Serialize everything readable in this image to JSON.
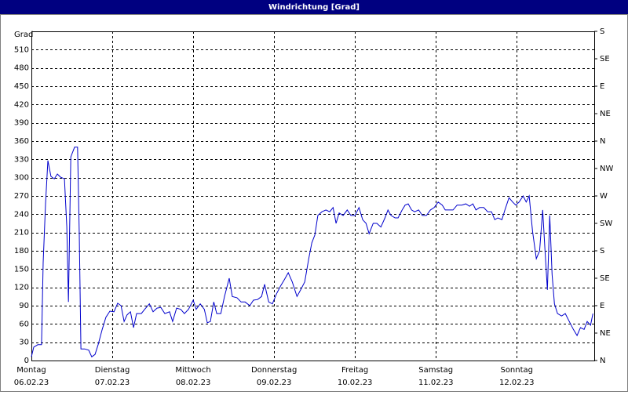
{
  "chart_data": {
    "type": "line",
    "title": "Windrichtung [Grad]",
    "y_label": "Grad",
    "color": "#0000cc",
    "grid": true,
    "xlim": [
      0,
      167
    ],
    "xticks": [
      {
        "value": 0,
        "label": "Montag"
      },
      {
        "value": 24,
        "label": "Dienstag"
      },
      {
        "value": 48,
        "label": "Mittwoch"
      },
      {
        "value": 72,
        "label": "Donnerstag"
      },
      {
        "value": 96,
        "label": "Freitag"
      },
      {
        "value": 120,
        "label": "Samstag"
      },
      {
        "value": 144,
        "label": "Sonntag"
      }
    ],
    "xtick_dates": [
      "06.02.23",
      "07.02.23",
      "08.02.23",
      "09.02.23",
      "10.02.23",
      "11.02.23",
      "12.02.23"
    ],
    "ylim": [
      0,
      540
    ],
    "yticks": [
      0,
      30,
      60,
      90,
      120,
      150,
      180,
      210,
      240,
      270,
      300,
      330,
      360,
      390,
      420,
      450,
      480,
      510
    ],
    "y2lim": [
      0,
      540
    ],
    "y2ticks": [
      {
        "value": 0,
        "label": "N"
      },
      {
        "value": 45,
        "label": "NE"
      },
      {
        "value": 90,
        "label": "E"
      },
      {
        "value": 135,
        "label": "SE"
      },
      {
        "value": 180,
        "label": "S"
      },
      {
        "value": 225,
        "label": "SW"
      },
      {
        "value": 270,
        "label": "W"
      },
      {
        "value": 315,
        "label": "NW"
      },
      {
        "value": 360,
        "label": "N"
      },
      {
        "value": 405,
        "label": "NE"
      },
      {
        "value": 450,
        "label": "E"
      },
      {
        "value": 495,
        "label": "SE"
      },
      {
        "value": 540,
        "label": "S"
      }
    ],
    "x": [
      0,
      0.7,
      1.9,
      3.0,
      3.5,
      4.2,
      4.9,
      5.8,
      6.8,
      7.7,
      8.6,
      9.8,
      10.5,
      11,
      11.7,
      12.8,
      13.7,
      14.2,
      14.7,
      15.8,
      17,
      17.9,
      18.9,
      19.8,
      21,
      22.1,
      23.3,
      24.5,
      25.6,
      26.6,
      27.5,
      28.4,
      29.4,
      30.3,
      31.2,
      32.6,
      33.6,
      35,
      36.1,
      37.3,
      38.4,
      39.6,
      41,
      41.9,
      43.1,
      44.3,
      45.4,
      46.6,
      48,
      48.9,
      50.1,
      51.3,
      52.2,
      53.1,
      54.1,
      55,
      56.2,
      57.3,
      58.7,
      59.6,
      61,
      62.2,
      63.4,
      64.8,
      65.9,
      67.1,
      68.3,
      69.2,
      70.4,
      71.5,
      72.7,
      73.9,
      75,
      76.2,
      77.4,
      78.8,
      79.9,
      81.1,
      82.3,
      83.2,
      84.1,
      85,
      86.2,
      87.4,
      88.5,
      89.5,
      90.4,
      91.3,
      92.5,
      93.7,
      94.8,
      96,
      97.2,
      98.3,
      99.3,
      100.2,
      101.4,
      102.5,
      103.7,
      104.9,
      105.8,
      106.7,
      107.9,
      108.8,
      110,
      110.9,
      111.8,
      112.8,
      113.7,
      114.9,
      116,
      117.2,
      118.4,
      119.5,
      120.7,
      121.9,
      122.8,
      124,
      125.1,
      126.3,
      127.7,
      128.9,
      130,
      131,
      131.9,
      133,
      134.2,
      135.4,
      136.5,
      137.5,
      138.4,
      139.6,
      140.5,
      141.7,
      142.8,
      143.7,
      144.7,
      145.9,
      146.8,
      147.7,
      148.7,
      149.8,
      150.8,
      151.7,
      152.4,
      153.1,
      153.8,
      154.5,
      155.2,
      156.1,
      157.3,
      158.4,
      159.6,
      160.8,
      161.9,
      162.9,
      164,
      164.9,
      165.9,
      166.6
    ],
    "values": [
      6,
      22,
      26,
      26,
      161,
      257,
      328,
      302,
      298,
      306,
      301,
      298,
      219,
      96,
      334,
      350,
      350,
      206,
      19,
      19,
      17,
      6,
      10,
      26,
      51,
      71,
      81,
      80,
      94,
      90,
      64,
      75,
      80,
      54,
      77,
      77,
      84,
      93,
      80,
      86,
      87,
      77,
      80,
      64,
      86,
      84,
      77,
      84,
      99,
      84,
      93,
      84,
      62,
      64,
      96,
      77,
      77,
      105,
      135,
      105,
      103,
      96,
      96,
      90,
      99,
      100,
      105,
      125,
      96,
      93,
      109,
      122,
      132,
      144,
      129,
      105,
      116,
      129,
      167,
      193,
      206,
      238,
      244,
      247,
      244,
      251,
      225,
      242,
      238,
      247,
      238,
      238,
      251,
      231,
      225,
      208,
      225,
      225,
      219,
      234,
      247,
      238,
      234,
      234,
      247,
      255,
      257,
      247,
      244,
      247,
      238,
      238,
      247,
      251,
      260,
      255,
      247,
      247,
      247,
      255,
      255,
      257,
      253,
      257,
      247,
      251,
      251,
      244,
      244,
      231,
      234,
      231,
      247,
      267,
      260,
      255,
      260,
      270,
      260,
      270,
      212,
      167,
      180,
      247,
      180,
      116,
      238,
      141,
      93,
      77,
      73,
      77,
      64,
      51,
      41,
      54,
      51,
      64,
      58,
      77
    ]
  }
}
